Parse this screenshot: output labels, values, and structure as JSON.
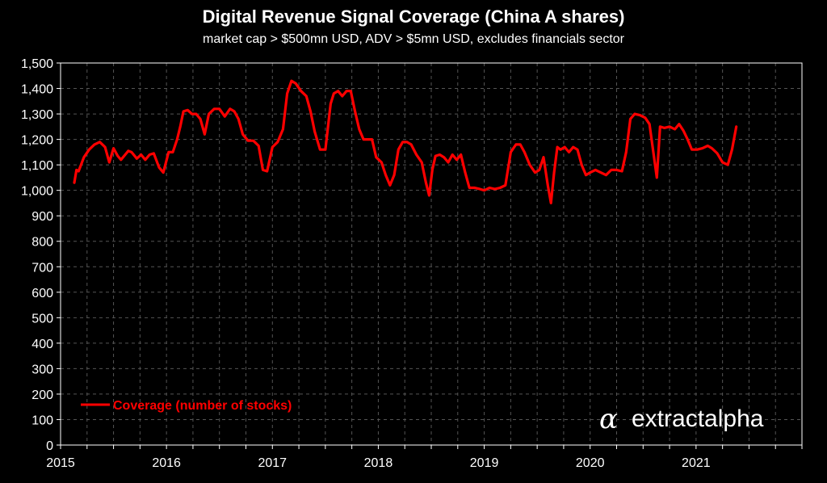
{
  "chart_data": {
    "type": "line",
    "title": "Digital Revenue Signal Coverage (China A shares)",
    "subtitle": "market cap > $500mn USD, ADV > $5mn USD, excludes financials sector",
    "ylim": [
      0,
      1500
    ],
    "yticks": [
      0,
      100,
      200,
      300,
      400,
      500,
      600,
      700,
      800,
      900,
      1000,
      1100,
      1200,
      1300,
      1400,
      1500
    ],
    "xlim": [
      2015,
      2022
    ],
    "xticks": [
      2015,
      2016,
      2017,
      2018,
      2019,
      2020,
      2021
    ],
    "grid": true,
    "legend_position": "bottom-left",
    "colors": {
      "series": "#ff0000",
      "background": "#000000",
      "grid": "#555555",
      "text": "#ffffff"
    },
    "series": [
      {
        "name": "Coverage (number of stocks)",
        "x": [
          2015.13,
          2015.15,
          2015.17,
          2015.22,
          2015.27,
          2015.32,
          2015.37,
          2015.42,
          2015.46,
          2015.5,
          2015.54,
          2015.57,
          2015.61,
          2015.64,
          2015.67,
          2015.72,
          2015.76,
          2015.8,
          2015.84,
          2015.88,
          2015.93,
          2015.97,
          2016.02,
          2016.06,
          2016.1,
          2016.13,
          2016.16,
          2016.2,
          2016.24,
          2016.28,
          2016.32,
          2016.36,
          2016.4,
          2016.45,
          2016.5,
          2016.55,
          2016.6,
          2016.64,
          2016.68,
          2016.72,
          2016.77,
          2016.82,
          2016.87,
          2016.91,
          2016.95,
          2017.0,
          2017.05,
          2017.1,
          2017.14,
          2017.18,
          2017.22,
          2017.27,
          2017.32,
          2017.36,
          2017.4,
          2017.45,
          2017.5,
          2017.55,
          2017.58,
          2017.62,
          2017.66,
          2017.7,
          2017.74,
          2017.78,
          2017.82,
          2017.86,
          2017.9,
          2017.94,
          2017.98,
          2018.03,
          2018.07,
          2018.11,
          2018.15,
          2018.19,
          2018.23,
          2018.27,
          2018.31,
          2018.36,
          2018.41,
          2018.45,
          2018.48,
          2018.51,
          2018.54,
          2018.58,
          2018.62,
          2018.66,
          2018.7,
          2018.74,
          2018.78,
          2018.82,
          2018.86,
          2018.91,
          2018.96,
          2019.0,
          2019.05,
          2019.1,
          2019.15,
          2019.2,
          2019.25,
          2019.3,
          2019.34,
          2019.38,
          2019.43,
          2019.48,
          2019.52,
          2019.56,
          2019.6,
          2019.63,
          2019.66,
          2019.69,
          2019.72,
          2019.76,
          2019.8,
          2019.84,
          2019.88,
          2019.92,
          2019.96,
          2020.0,
          2020.05,
          2020.1,
          2020.15,
          2020.2,
          2020.25,
          2020.3,
          2020.34,
          2020.38,
          2020.42,
          2020.47,
          2020.52,
          2020.56,
          2020.6,
          2020.63,
          2020.66,
          2020.7,
          2020.75,
          2020.8,
          2020.84,
          2020.88,
          2020.92,
          2020.96,
          2021.01,
          2021.06,
          2021.11,
          2021.15,
          2021.2,
          2021.25,
          2021.3,
          2021.34,
          2021.38
        ],
        "y": [
          1030,
          1080,
          1075,
          1130,
          1160,
          1180,
          1190,
          1170,
          1110,
          1165,
          1135,
          1120,
          1140,
          1155,
          1150,
          1125,
          1140,
          1120,
          1140,
          1145,
          1090,
          1070,
          1150,
          1150,
          1200,
          1250,
          1310,
          1315,
          1300,
          1300,
          1280,
          1220,
          1300,
          1320,
          1320,
          1290,
          1320,
          1310,
          1280,
          1220,
          1195,
          1195,
          1175,
          1080,
          1075,
          1170,
          1190,
          1240,
          1380,
          1430,
          1420,
          1390,
          1370,
          1310,
          1230,
          1160,
          1160,
          1340,
          1380,
          1390,
          1370,
          1390,
          1390,
          1310,
          1240,
          1200,
          1200,
          1200,
          1130,
          1110,
          1060,
          1020,
          1060,
          1160,
          1190,
          1190,
          1180,
          1140,
          1110,
          1030,
          980,
          1080,
          1135,
          1140,
          1130,
          1110,
          1140,
          1120,
          1140,
          1070,
          1010,
          1010,
          1005,
          1000,
          1010,
          1005,
          1010,
          1020,
          1150,
          1180,
          1180,
          1150,
          1100,
          1070,
          1080,
          1130,
          1020,
          950,
          1070,
          1170,
          1160,
          1170,
          1150,
          1170,
          1160,
          1100,
          1060,
          1070,
          1080,
          1070,
          1060,
          1080,
          1080,
          1075,
          1150,
          1280,
          1300,
          1295,
          1285,
          1260,
          1140,
          1050,
          1250,
          1245,
          1250,
          1240,
          1260,
          1235,
          1200,
          1160,
          1160,
          1165,
          1175,
          1165,
          1145,
          1110,
          1100,
          1160,
          1250
        ]
      }
    ]
  },
  "legend": {
    "label": "Coverage (number of stocks)"
  },
  "brand": {
    "symbol": "α",
    "name": "extractalpha"
  }
}
